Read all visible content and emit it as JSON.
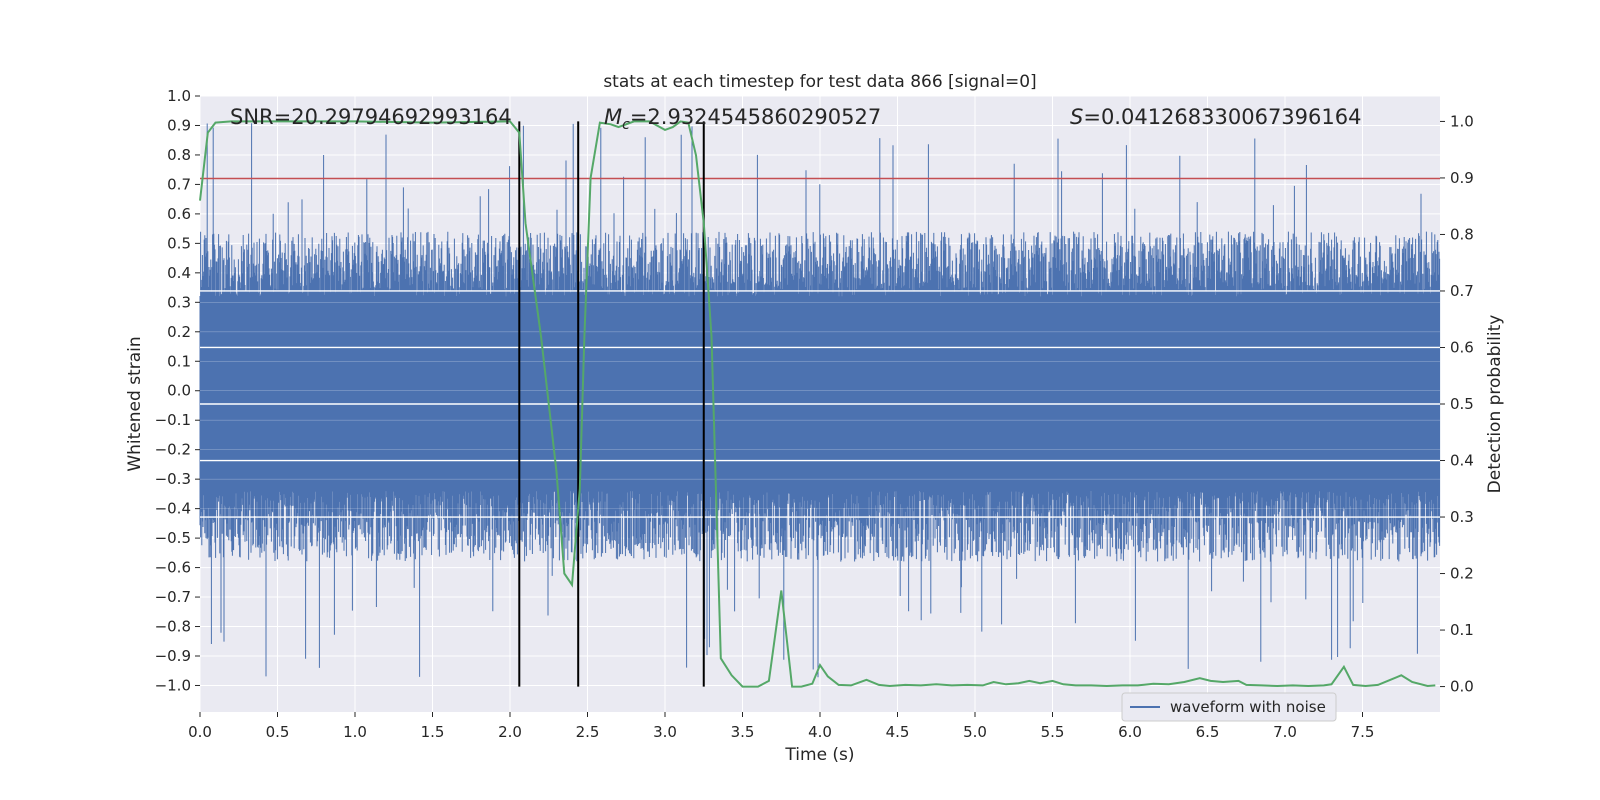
{
  "chart_data": {
    "type": "line",
    "title": "stats at each timestep for test data 866 [signal=0]",
    "xlabel": "Time (s)",
    "ylabel": "Whitened strain",
    "y2label": "Detection probability",
    "xlim": [
      0.0,
      8.0
    ],
    "ylim": [
      -1.09,
      1.0
    ],
    "y2lim": [
      -0.045,
      1.045
    ],
    "xticks": [
      "0.0",
      "0.5",
      "1.0",
      "1.5",
      "2.0",
      "2.5",
      "3.0",
      "3.5",
      "4.0",
      "4.5",
      "5.0",
      "5.5",
      "6.0",
      "6.5",
      "7.0",
      "7.5"
    ],
    "yticks": [
      "1.0",
      "0.9",
      "0.8",
      "0.7",
      "0.6",
      "0.5",
      "0.4",
      "0.3",
      "0.2",
      "0.1",
      "0.0",
      "-0.1",
      "-0.2",
      "-0.3",
      "-0.4",
      "-0.5",
      "-0.6",
      "-0.7",
      "-0.8",
      "-0.9",
      "-1.0"
    ],
    "y2ticks": [
      "1.0",
      "0.9",
      "0.8",
      "0.7",
      "0.6",
      "0.5",
      "0.4",
      "0.3",
      "0.2",
      "0.1",
      "0.0"
    ],
    "grid": true,
    "legend": {
      "position": "lower-right",
      "entries": [
        "waveform with noise"
      ]
    },
    "annotations": {
      "snr": "SNR=20.29794692993164",
      "mc_symbol": "M",
      "mc_sub": "c",
      "mc_value": "=2.9324545860290527",
      "s_symbol": "S",
      "s_value": "=0.041268330067396164"
    },
    "threshold_y": 0.72,
    "vlines_x": [
      2.06,
      2.44,
      3.25
    ],
    "colors": {
      "waveform": "#4c72b0",
      "probability": "#55a868",
      "threshold": "#c44e52",
      "vlines": "#000000",
      "axes_bg": "#eaeaf2",
      "grid": "#ffffff"
    },
    "series": [
      {
        "name": "waveform with noise",
        "style": "dense noise, envelope approx -0.55..0.55 with spikes to +0.91 / -0.99",
        "x_range": [
          0.0,
          8.0
        ]
      },
      {
        "axis": "y2",
        "x": [
          0.0,
          0.05,
          0.1,
          0.2,
          0.5,
          1.0,
          1.5,
          2.0,
          2.06,
          2.1,
          2.2,
          2.3,
          2.35,
          2.4,
          2.45,
          2.48,
          2.52,
          2.58,
          2.65,
          2.7,
          2.8,
          2.9,
          3.0,
          3.05,
          3.1,
          3.15,
          3.2,
          3.25,
          3.3,
          3.36,
          3.43,
          3.5,
          3.6,
          3.67,
          3.75,
          3.82,
          3.88,
          3.95,
          4.0,
          4.05,
          4.12,
          4.2,
          4.3,
          4.38,
          4.45,
          4.55,
          4.65,
          4.75,
          4.85,
          4.95,
          5.05,
          5.12,
          5.2,
          5.28,
          5.35,
          5.42,
          5.5,
          5.57,
          5.65,
          5.75,
          5.85,
          5.95,
          6.05,
          6.15,
          6.25,
          6.35,
          6.45,
          6.52,
          6.6,
          6.7,
          6.75,
          6.85,
          6.95,
          7.05,
          7.15,
          7.25,
          7.3,
          7.38,
          7.44,
          7.52,
          7.6,
          7.68,
          7.75,
          7.82,
          7.92,
          7.97
        ],
        "values": [
          0.86,
          0.98,
          0.998,
          1.0,
          1.0,
          1.0,
          0.998,
          1.0,
          0.98,
          0.82,
          0.62,
          0.38,
          0.2,
          0.18,
          0.35,
          0.62,
          0.9,
          0.998,
          0.995,
          0.99,
          1.0,
          1.0,
          0.985,
          0.99,
          1.0,
          0.998,
          0.94,
          0.82,
          0.62,
          0.05,
          0.02,
          0.0,
          0.0,
          0.01,
          0.17,
          0.0,
          0.0,
          0.005,
          0.038,
          0.018,
          0.003,
          0.002,
          0.012,
          0.003,
          0.001,
          0.003,
          0.002,
          0.004,
          0.002,
          0.003,
          0.002,
          0.008,
          0.004,
          0.006,
          0.01,
          0.006,
          0.01,
          0.004,
          0.002,
          0.002,
          0.001,
          0.002,
          0.002,
          0.005,
          0.004,
          0.008,
          0.015,
          0.01,
          0.008,
          0.01,
          0.003,
          0.002,
          0.001,
          0.002,
          0.001,
          0.002,
          0.004,
          0.035,
          0.003,
          0.001,
          0.003,
          0.012,
          0.02,
          0.008,
          0.001,
          0.002
        ]
      }
    ]
  }
}
